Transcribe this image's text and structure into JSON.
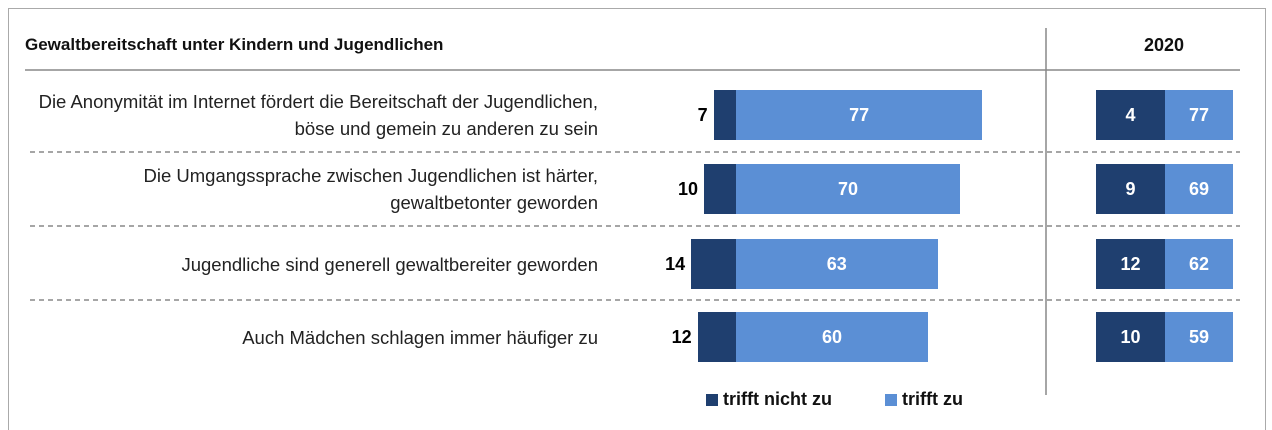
{
  "chart_data": [
    {
      "type": "bar",
      "title": "Gewaltbereitschaft unter Kindern und Jugendlichen",
      "categories": [
        "Die Anonymität im Internet fördert die Bereitschaft der Jugendlichen, böse und gemein zu anderen zu sein",
        "Die Umgangssprache zwischen Jugendlichen ist härter, gewaltbetonter geworden",
        "Jugendliche sind generell gewaltbereiter geworden",
        "Auch Mädchen schlagen immer häufiger zu"
      ],
      "series": [
        {
          "name": "trifft nicht zu",
          "color": "#1f3f6f",
          "values": [
            7,
            10,
            14,
            12
          ]
        },
        {
          "name": "trifft zu",
          "color": "#5b8fd5",
          "values": [
            77,
            70,
            63,
            60
          ]
        }
      ]
    },
    {
      "type": "table",
      "title": "2020",
      "series": [
        {
          "color": "#1f3f6f",
          "values": [
            4,
            9,
            12,
            10
          ]
        },
        {
          "color": "#5b8fd5",
          "values": [
            77,
            69,
            62,
            59
          ]
        }
      ]
    }
  ]
}
